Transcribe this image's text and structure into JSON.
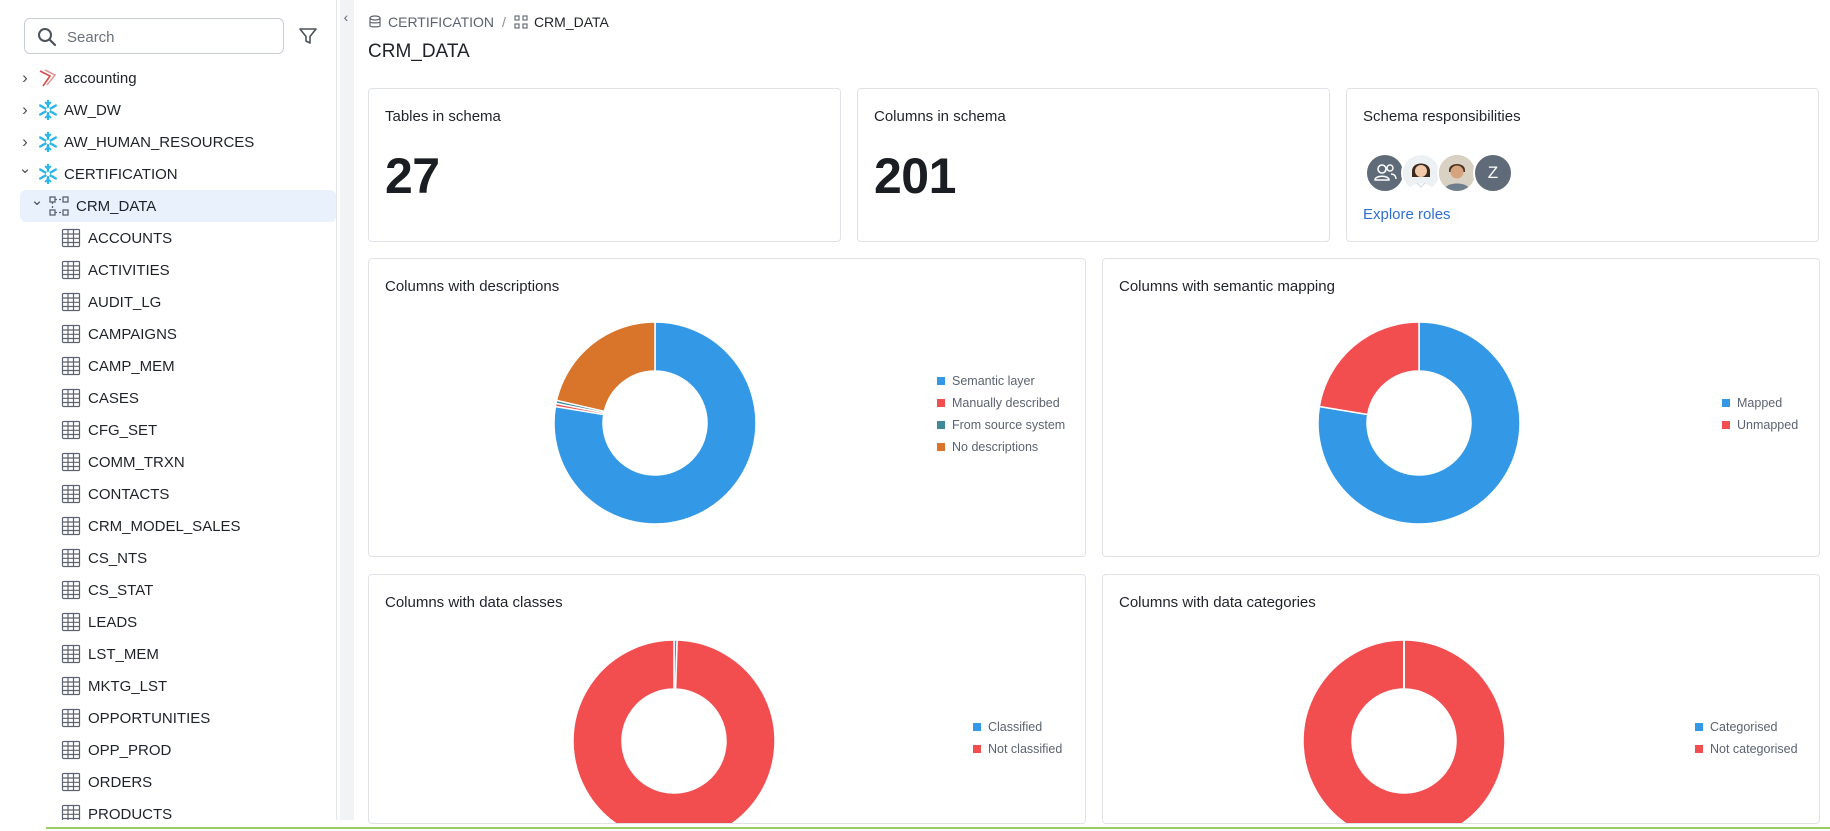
{
  "search": {
    "placeholder": "Search"
  },
  "tree": {
    "roots": [
      {
        "label": "accounting",
        "icon": "database-red-icon",
        "expanded": false
      },
      {
        "label": "AW_DW",
        "icon": "snowflake-icon",
        "expanded": false
      },
      {
        "label": "AW_HUMAN_RESOURCES",
        "icon": "snowflake-icon",
        "expanded": false
      },
      {
        "label": "CERTIFICATION",
        "icon": "snowflake-icon",
        "expanded": true
      }
    ],
    "schema": {
      "label": "CRM_DATA",
      "icon": "schema-icon"
    },
    "tables": [
      "ACCOUNTS",
      "ACTIVITIES",
      "AUDIT_LG",
      "CAMPAIGNS",
      "CAMP_MEM",
      "CASES",
      "CFG_SET",
      "COMM_TRXN",
      "CONTACTS",
      "CRM_MODEL_SALES",
      "CS_NTS",
      "CS_STAT",
      "LEADS",
      "LST_MEM",
      "MKTG_LST",
      "OPPORTUNITIES",
      "OPP_PROD",
      "ORDERS",
      "PRODUCTS"
    ]
  },
  "breadcrumb": {
    "parent": "CERTIFICATION",
    "current": "CRM_DATA"
  },
  "page": {
    "title": "CRM_DATA"
  },
  "stats": {
    "tables": {
      "title": "Tables in schema",
      "value": "27"
    },
    "columns": {
      "title": "Columns in schema",
      "value": "201"
    },
    "responsibilities": {
      "title": "Schema responsibilities",
      "link": "Explore roles",
      "last_avatar_initial": "Z"
    }
  },
  "colors": {
    "blue": "#3399e6",
    "red": "#f24d4f",
    "teal": "#3f8a9a",
    "orange": "#d9742b",
    "link": "#2f6fd1"
  },
  "chart_data": [
    {
      "type": "pie",
      "title": "Columns with descriptions",
      "categories": [
        "Semantic layer",
        "Manually described",
        "From source system",
        "No descriptions"
      ],
      "values": [
        156,
        1,
        1,
        43
      ]
    },
    {
      "type": "pie",
      "title": "Columns with semantic mapping",
      "categories": [
        "Mapped",
        "Unmapped"
      ],
      "values": [
        156,
        45
      ]
    },
    {
      "type": "pie",
      "title": "Columns with data classes",
      "categories": [
        "Classified",
        "Not classified"
      ],
      "values": [
        1,
        200
      ]
    },
    {
      "type": "pie",
      "title": "Columns with data categories",
      "categories": [
        "Categorised",
        "Not categorised"
      ],
      "values": [
        0,
        201
      ]
    }
  ]
}
